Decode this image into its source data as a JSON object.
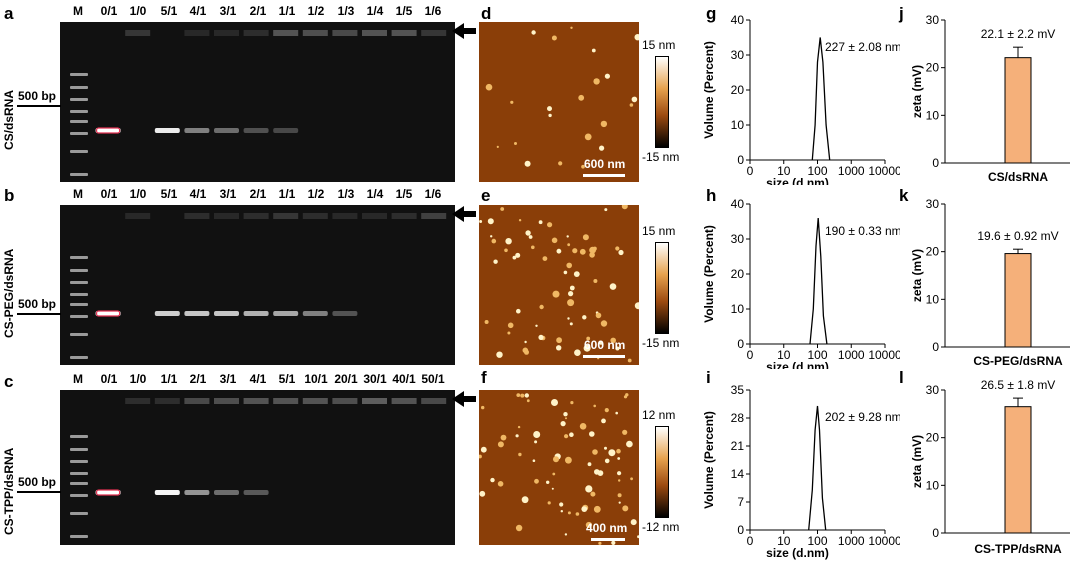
{
  "panel_letters": {
    "a": "a",
    "b": "b",
    "c": "c",
    "d": "d",
    "e": "e",
    "f": "f",
    "g": "g",
    "h": "h",
    "i": "i",
    "j": "j",
    "k": "k",
    "l": "l"
  },
  "gels": [
    {
      "lanes": [
        "M",
        "0/1",
        "1/0",
        "5/1",
        "4/1",
        "3/1",
        "2/1",
        "1/1",
        "1/2",
        "1/3",
        "1/4",
        "1/5",
        "1/6"
      ],
      "marker_label": "500 bp",
      "sample_label": "CS/dsRNA",
      "band_intensity": [
        0,
        1.0,
        0,
        0.9,
        0.35,
        0.25,
        0.1,
        0.06,
        0,
        0,
        0,
        0,
        0
      ],
      "well_intensity": [
        0,
        0,
        0.2,
        0,
        0.05,
        0.05,
        0.1,
        0.5,
        0.45,
        0.4,
        0.5,
        0.5,
        0.2
      ]
    },
    {
      "lanes": [
        "M",
        "0/1",
        "1/0",
        "5/1",
        "4/1",
        "3/1",
        "2/1",
        "1/1",
        "1/2",
        "1/3",
        "1/4",
        "1/5",
        "1/6"
      ],
      "marker_label": "500 bp",
      "sample_label": "CS-PEG/dsRNA",
      "band_intensity": [
        0,
        1.0,
        0,
        0.75,
        0.7,
        0.7,
        0.6,
        0.55,
        0.35,
        0.12,
        0,
        0,
        0
      ],
      "well_intensity": [
        0,
        0,
        0.05,
        0,
        0.1,
        0.05,
        0.1,
        0.2,
        0.1,
        0.05,
        0.05,
        0.1,
        0.3
      ]
    },
    {
      "lanes": [
        "M",
        "0/1",
        "1/0",
        "1/1",
        "2/1",
        "3/1",
        "4/1",
        "5/1",
        "10/1",
        "20/1",
        "30/1",
        "40/1",
        "50/1"
      ],
      "marker_label": "500 bp",
      "sample_label": "CS-TPP/dsRNA",
      "band_intensity": [
        0,
        1.0,
        0,
        0.95,
        0.45,
        0.25,
        0.15,
        0,
        0,
        0,
        0,
        0,
        0
      ],
      "well_intensity": [
        0,
        0,
        0.1,
        0.1,
        0.4,
        0.45,
        0.5,
        0.5,
        0.5,
        0.45,
        0.6,
        0.5,
        0.4
      ]
    }
  ],
  "afm": [
    {
      "cmax": "15 nm",
      "cmin": "-15 nm",
      "scale": "600 nm"
    },
    {
      "cmax": "15 nm",
      "cmin": "-15 nm",
      "scale": "600 nm"
    },
    {
      "cmax": "12 nm",
      "cmin": "-12 nm",
      "scale": "400 nm"
    }
  ],
  "chart_data": [
    {
      "type": "line",
      "title": "",
      "xlabel": "size (d.nm)",
      "ylabel": "Volume (Percent)",
      "x_scale": "log",
      "xlim": [
        1,
        10000
      ],
      "ylim": [
        0,
        40
      ],
      "xticks": [
        "0",
        "10",
        "100",
        "1000",
        "10000"
      ],
      "yticks": [
        "0",
        "10",
        "20",
        "30",
        "40"
      ],
      "annotation": "227 ± 2.08 nm",
      "series": [
        {
          "x": [
            70,
            85,
            100,
            120,
            145,
            180,
            230
          ],
          "y": [
            0,
            10,
            28,
            35,
            28,
            10,
            0
          ]
        }
      ]
    },
    {
      "type": "line",
      "title": "",
      "xlabel": "size (d.nm)",
      "ylabel": "Volume (Percent)",
      "x_scale": "log",
      "xlim": [
        1,
        10000
      ],
      "ylim": [
        0,
        40
      ],
      "xticks": [
        "0",
        "10",
        "100",
        "1000",
        "10000"
      ],
      "yticks": [
        "0",
        "10",
        "20",
        "30",
        "40"
      ],
      "annotation": "190 ± 0.33 nm",
      "series": [
        {
          "x": [
            60,
            75,
            90,
            105,
            125,
            150,
            190
          ],
          "y": [
            0,
            10,
            28,
            36,
            25,
            8,
            0
          ]
        }
      ]
    },
    {
      "type": "line",
      "title": "",
      "xlabel": "size (d.nm)",
      "ylabel": "Volume (Percent)",
      "x_scale": "log",
      "xlim": [
        1,
        10000
      ],
      "ylim": [
        0,
        35
      ],
      "xticks": [
        "0",
        "10",
        "100",
        "1000",
        "10000"
      ],
      "yticks": [
        "0",
        "7",
        "14",
        "21",
        "28",
        "35"
      ],
      "annotation": "202 ± 9.28 nm",
      "series": [
        {
          "x": [
            55,
            70,
            85,
            100,
            115,
            140,
            175
          ],
          "y": [
            0,
            10,
            25,
            31,
            25,
            8,
            0
          ]
        }
      ]
    },
    {
      "type": "bar",
      "title": "",
      "xlabel": "",
      "ylabel": "zeta (mV)",
      "ylim": [
        0,
        30
      ],
      "yticks": [
        "0",
        "10",
        "20",
        "30"
      ],
      "categories": [
        "CS/dsRNA"
      ],
      "values": [
        22.1
      ],
      "error": [
        2.2
      ],
      "annotation": "22.1 ± 2.2 mV",
      "bar_color": "#f5b07a"
    },
    {
      "type": "bar",
      "title": "",
      "xlabel": "",
      "ylabel": "zeta (mV)",
      "ylim": [
        0,
        30
      ],
      "yticks": [
        "0",
        "10",
        "20",
        "30"
      ],
      "categories": [
        "CS-PEG/dsRNA"
      ],
      "values": [
        19.6
      ],
      "error": [
        0.92
      ],
      "annotation": "19.6 ± 0.92 mV",
      "bar_color": "#f5b07a"
    },
    {
      "type": "bar",
      "title": "",
      "xlabel": "",
      "ylabel": "zeta (mV)",
      "ylim": [
        0,
        30
      ],
      "yticks": [
        "0",
        "10",
        "20",
        "30"
      ],
      "categories": [
        "CS-TPP/dsRNA"
      ],
      "values": [
        26.5
      ],
      "error": [
        1.8
      ],
      "annotation": "26.5 ± 1.8 mV",
      "bar_color": "#f5b07a"
    }
  ]
}
